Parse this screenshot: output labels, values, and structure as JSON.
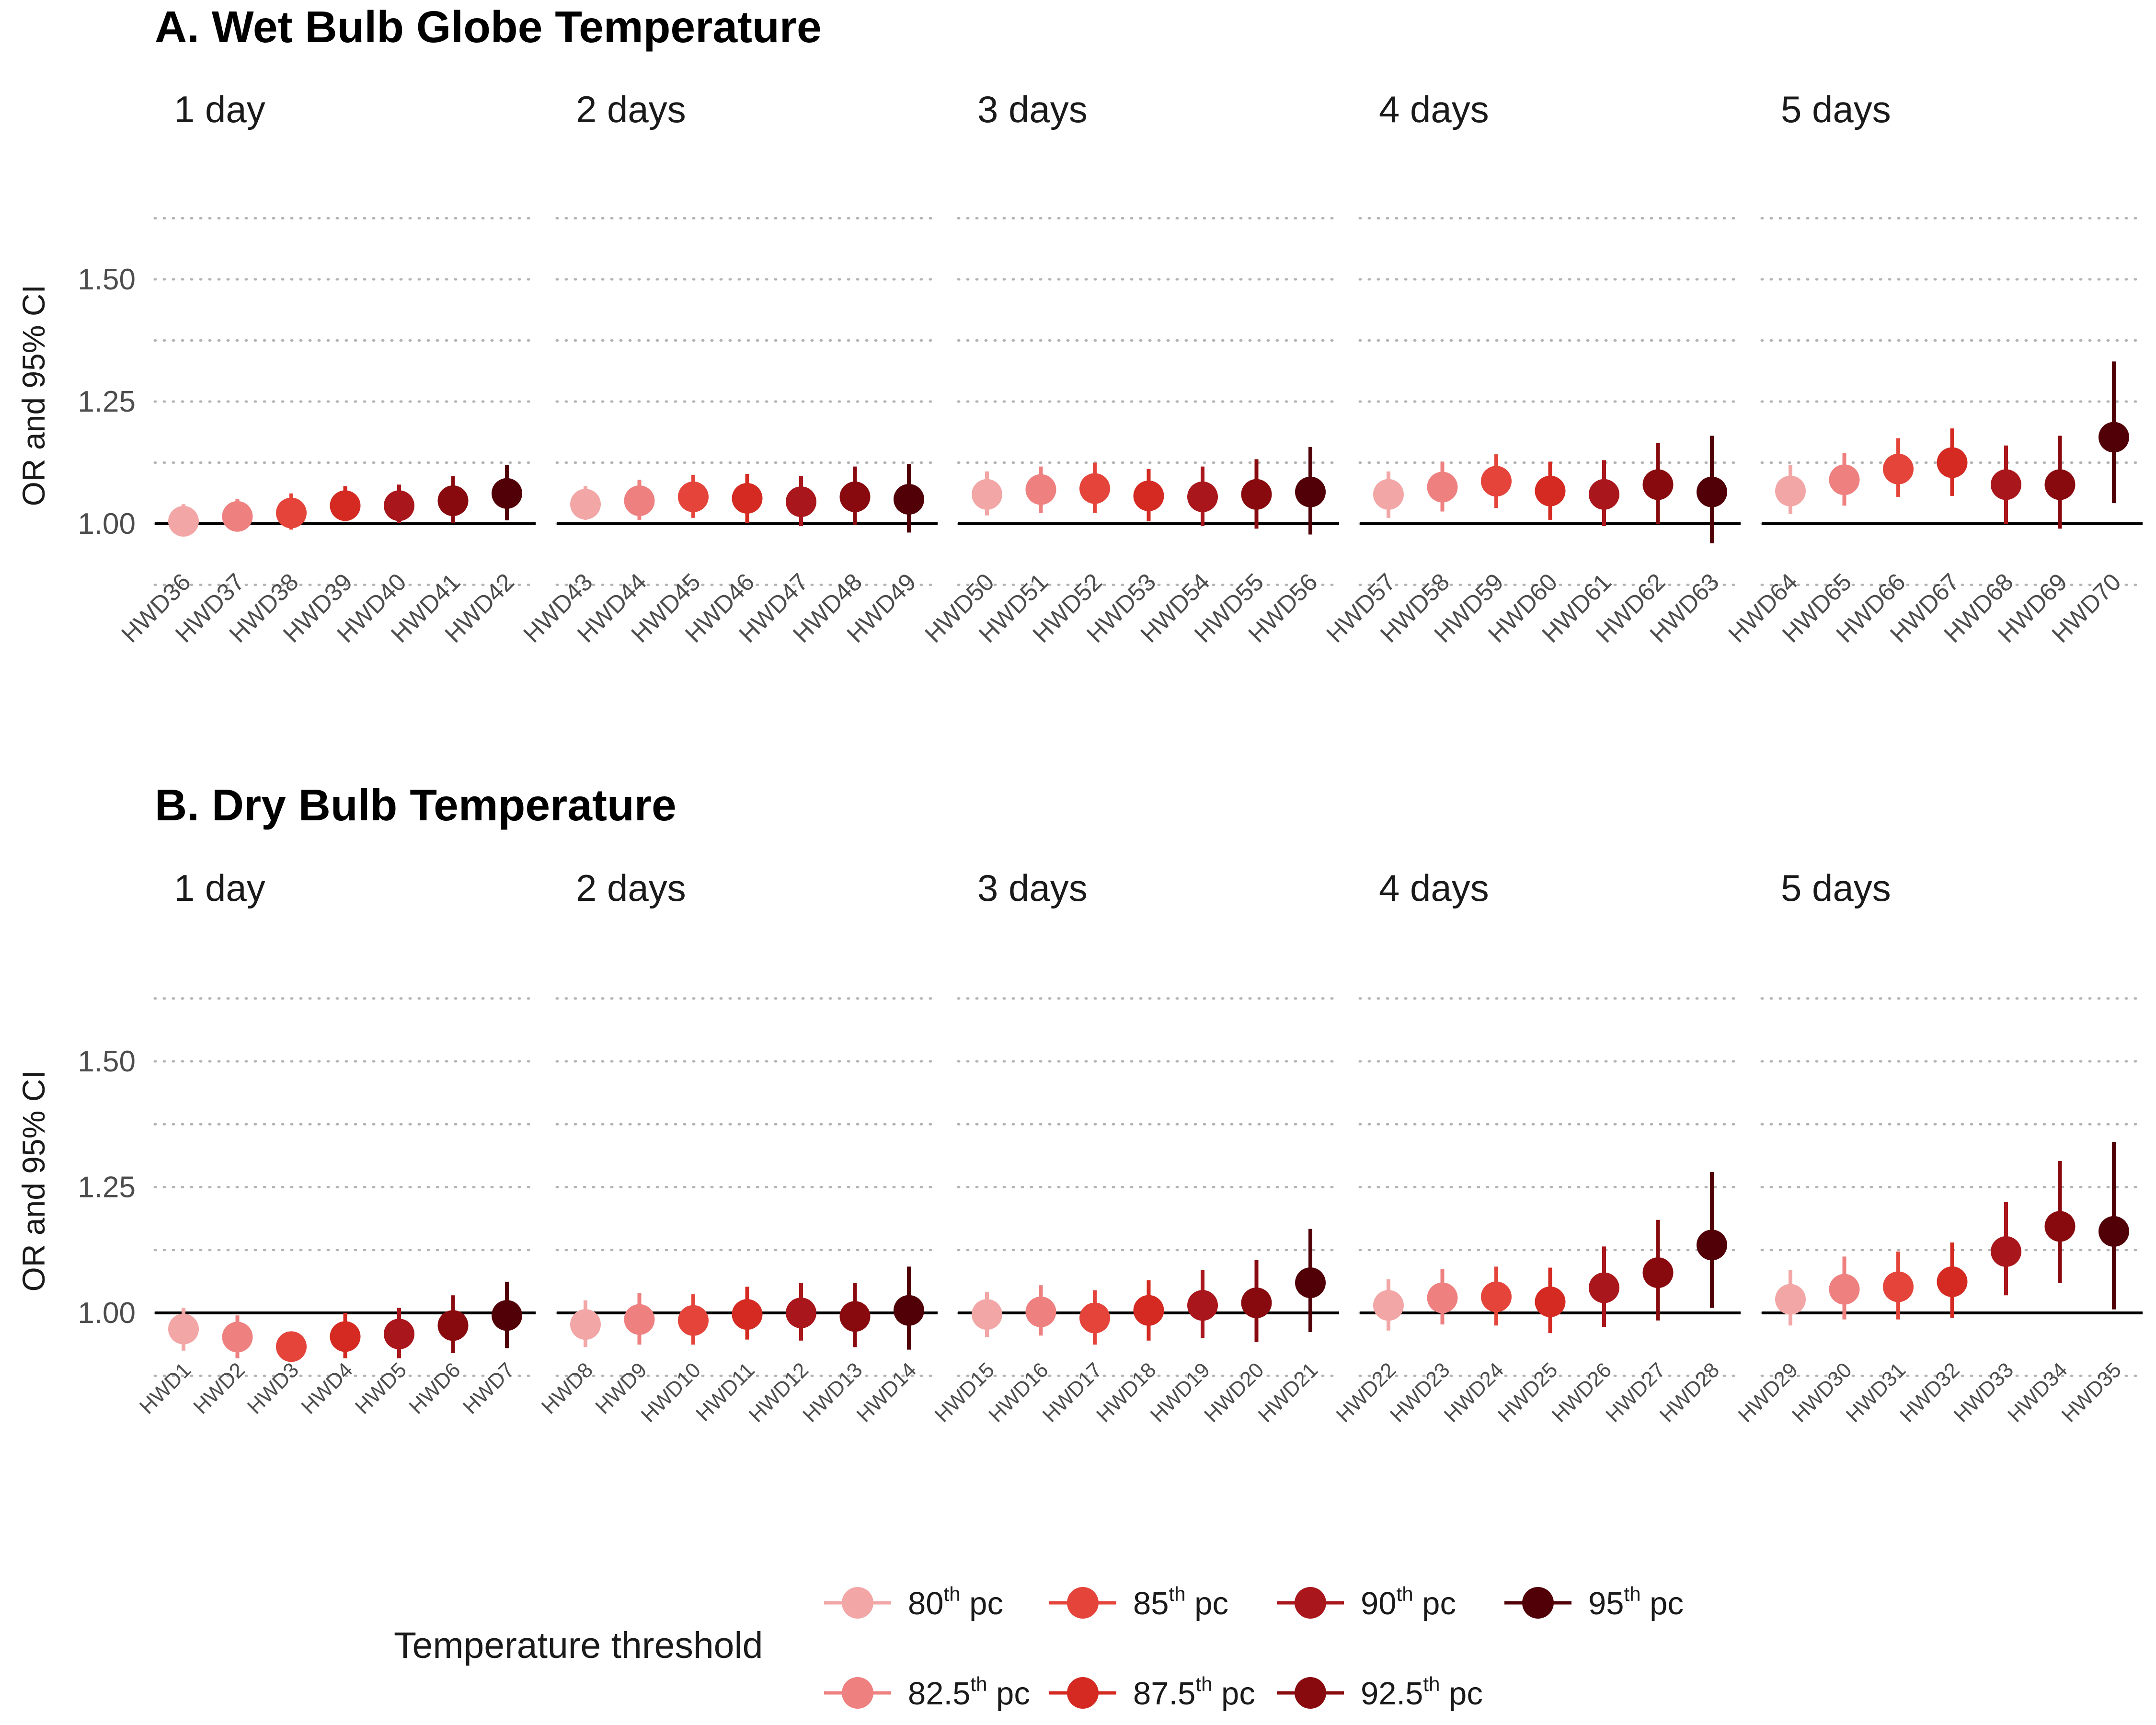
{
  "legend": {
    "title": "Temperature threshold",
    "items": [
      {
        "num": "80",
        "sup": "th",
        "rest": " pc",
        "color": "#F2A6A6"
      },
      {
        "num": "82.5",
        "sup": "th",
        "rest": " pc",
        "color": "#EE8080"
      },
      {
        "num": "85",
        "sup": "th",
        "rest": " pc",
        "color": "#E4443A"
      },
      {
        "num": "87.5",
        "sup": "th",
        "rest": " pc",
        "color": "#D42A22"
      },
      {
        "num": "90",
        "sup": "th",
        "rest": " pc",
        "color": "#A9161C"
      },
      {
        "num": "92.5",
        "sup": "th",
        "rest": " pc",
        "color": "#880A0E"
      },
      {
        "num": "95",
        "sup": "th",
        "rest": " pc",
        "color": "#520008"
      }
    ]
  },
  "chart_data": [
    {
      "type": "scatter",
      "title": "A. Wet Bulb Globe Temperature",
      "ylabel": "OR and 95% CI",
      "ylim": [
        0.875,
        1.65
      ],
      "yticks": [
        "1.00",
        "1.25",
        "1.50"
      ],
      "reference_line": 1.0,
      "grid": "horizontal dotted",
      "facets": [
        {
          "label": "1 day",
          "categories": [
            "HWD36",
            "HWD37",
            "HWD38",
            "HWD39",
            "HWD40",
            "HWD41",
            "HWD42"
          ],
          "or": [
            1.005,
            1.015,
            1.022,
            1.037,
            1.037,
            1.047,
            1.062
          ],
          "lo": [
            0.975,
            0.985,
            0.988,
            1.005,
            1.002,
            1.002,
            1.007
          ],
          "hi": [
            1.04,
            1.05,
            1.062,
            1.077,
            1.08,
            1.097,
            1.12
          ]
        },
        {
          "label": "2 days",
          "categories": [
            "HWD43",
            "HWD44",
            "HWD45",
            "HWD46",
            "HWD47",
            "HWD48",
            "HWD49"
          ],
          "or": [
            1.04,
            1.047,
            1.055,
            1.052,
            1.045,
            1.055,
            1.05
          ],
          "lo": [
            1.008,
            1.008,
            1.012,
            1.002,
            0.995,
            0.998,
            0.982
          ],
          "hi": [
            1.077,
            1.09,
            1.1,
            1.102,
            1.097,
            1.117,
            1.122
          ]
        },
        {
          "label": "3 days",
          "categories": [
            "HWD50",
            "HWD51",
            "HWD52",
            "HWD53",
            "HWD54",
            "HWD55",
            "HWD56"
          ],
          "or": [
            1.06,
            1.07,
            1.072,
            1.057,
            1.055,
            1.06,
            1.065
          ],
          "lo": [
            1.017,
            1.022,
            1.022,
            1.005,
            0.995,
            0.99,
            0.978
          ],
          "hi": [
            1.107,
            1.117,
            1.125,
            1.112,
            1.117,
            1.132,
            1.157
          ]
        },
        {
          "label": "4 days",
          "categories": [
            "HWD57",
            "HWD58",
            "HWD59",
            "HWD60",
            "HWD61",
            "HWD62",
            "HWD63"
          ],
          "or": [
            1.06,
            1.075,
            1.087,
            1.067,
            1.06,
            1.08,
            1.065
          ],
          "lo": [
            1.012,
            1.025,
            1.032,
            1.008,
            0.995,
            1.0,
            0.96
          ],
          "hi": [
            1.107,
            1.127,
            1.142,
            1.127,
            1.13,
            1.165,
            1.18
          ]
        },
        {
          "label": "5 days",
          "categories": [
            "HWD64",
            "HWD65",
            "HWD66",
            "HWD67",
            "HWD68",
            "HWD69",
            "HWD70"
          ],
          "or": [
            1.067,
            1.09,
            1.112,
            1.125,
            1.08,
            1.08,
            1.177
          ],
          "lo": [
            1.02,
            1.037,
            1.055,
            1.057,
            1.0,
            0.99,
            1.042
          ],
          "hi": [
            1.12,
            1.145,
            1.175,
            1.195,
            1.16,
            1.18,
            1.332
          ]
        }
      ]
    },
    {
      "type": "scatter",
      "title": "B. Dry Bulb Temperature",
      "ylabel": "OR and 95% CI",
      "ylim": [
        0.875,
        1.65
      ],
      "yticks": [
        "1.00",
        "1.25",
        "1.50"
      ],
      "reference_line": 1.0,
      "grid": "horizontal dotted",
      "facets": [
        {
          "label": "1 day",
          "categories": [
            "HWD1",
            "HWD2",
            "HWD3",
            "HWD4",
            "HWD5",
            "HWD6",
            "HWD7"
          ],
          "or": [
            0.968,
            0.952,
            0.933,
            0.953,
            0.958,
            0.975,
            0.995
          ],
          "lo": [
            0.925,
            0.91,
            0.91,
            0.91,
            0.91,
            0.92,
            0.93
          ],
          "hi": [
            1.01,
            0.995,
            0.955,
            1.0,
            1.01,
            1.035,
            1.062
          ]
        },
        {
          "label": "2 days",
          "categories": [
            "HWD8",
            "HWD9",
            "HWD10",
            "HWD11",
            "HWD12",
            "HWD13",
            "HWD14"
          ],
          "or": [
            0.977,
            0.987,
            0.985,
            0.997,
            1.0,
            0.993,
            1.005
          ],
          "lo": [
            0.932,
            0.937,
            0.937,
            0.947,
            0.945,
            0.932,
            0.927
          ],
          "hi": [
            1.025,
            1.04,
            1.037,
            1.052,
            1.06,
            1.06,
            1.092
          ]
        },
        {
          "label": "3 days",
          "categories": [
            "HWD15",
            "HWD16",
            "HWD17",
            "HWD18",
            "HWD19",
            "HWD20",
            "HWD21"
          ],
          "or": [
            0.997,
            1.002,
            0.99,
            1.005,
            1.015,
            1.02,
            1.06
          ],
          "lo": [
            0.952,
            0.955,
            0.937,
            0.945,
            0.95,
            0.942,
            0.962
          ],
          "hi": [
            1.042,
            1.055,
            1.045,
            1.065,
            1.085,
            1.105,
            1.167
          ]
        },
        {
          "label": "4 days",
          "categories": [
            "HWD22",
            "HWD23",
            "HWD24",
            "HWD25",
            "HWD26",
            "HWD27",
            "HWD28"
          ],
          "or": [
            1.015,
            1.03,
            1.032,
            1.022,
            1.05,
            1.08,
            1.135
          ],
          "lo": [
            0.965,
            0.977,
            0.975,
            0.96,
            0.972,
            0.985,
            1.01
          ],
          "hi": [
            1.067,
            1.087,
            1.092,
            1.09,
            1.132,
            1.185,
            1.28
          ]
        },
        {
          "label": "5 days",
          "categories": [
            "HWD29",
            "HWD30",
            "HWD31",
            "HWD32",
            "HWD33",
            "HWD34",
            "HWD35"
          ],
          "or": [
            1.027,
            1.047,
            1.052,
            1.062,
            1.122,
            1.172,
            1.162
          ],
          "lo": [
            0.975,
            0.987,
            0.987,
            0.99,
            1.035,
            1.06,
            1.007
          ],
          "hi": [
            1.085,
            1.112,
            1.122,
            1.14,
            1.22,
            1.302,
            1.34
          ]
        }
      ]
    }
  ]
}
